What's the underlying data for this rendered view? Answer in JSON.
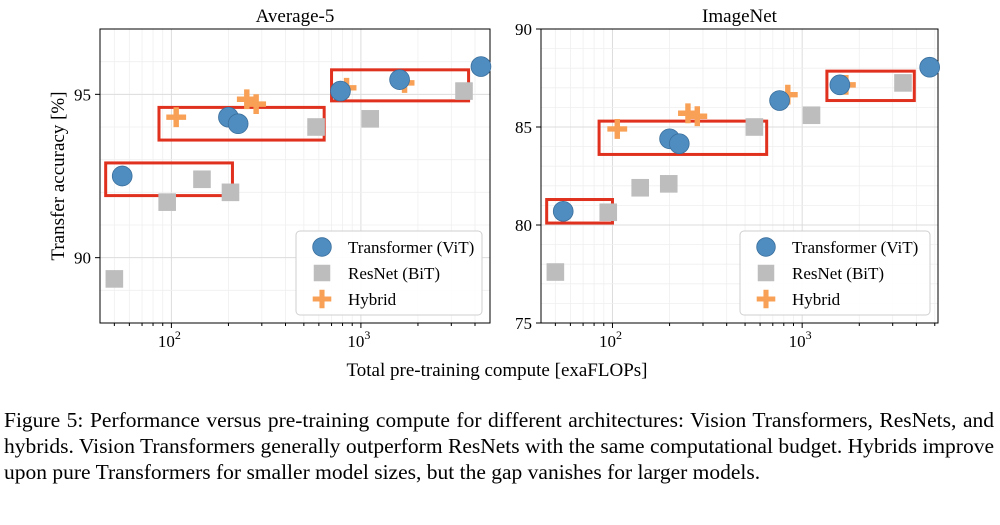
{
  "figure": {
    "xlabel": "Total pre-training compute [exaFLOPs]",
    "ylabel": "Transfer accuracy [%]"
  },
  "caption": "Figure 5: Performance versus pre-training compute for different architectures: Vision Transformers, ResNets, and hybrids. Vision Transformers generally outperform ResNets with the same computational budget. Hybrids improve upon pure Transformers for smaller model sizes, but the gap vanishes for larger models.",
  "chart_data": [
    {
      "type": "scatter",
      "title": "Average-5",
      "xscale": "log",
      "xlim": [
        42,
        4800
      ],
      "ylim": [
        88,
        97
      ],
      "yticks": [
        90,
        95
      ],
      "xticks": [
        {
          "value": 100,
          "label": "10",
          "exp": "2"
        },
        {
          "value": 1000,
          "label": "10",
          "exp": "3"
        }
      ],
      "grid": true,
      "legend": "bottom-right",
      "series": [
        {
          "name": "Transformer (ViT)",
          "marker": "circle",
          "color": "#4f8cc0",
          "points": [
            [
              55,
              92.5
            ],
            [
              200,
              94.3
            ],
            [
              225,
              94.1
            ],
            [
              780,
              95.1
            ],
            [
              1600,
              95.45
            ],
            [
              4300,
              95.85
            ]
          ]
        },
        {
          "name": "ResNet (BiT)",
          "marker": "square",
          "color": "#bdbdbd",
          "points": [
            [
              50,
              89.35
            ],
            [
              95,
              91.7
            ],
            [
              145,
              92.4
            ],
            [
              205,
              92.0
            ],
            [
              580,
              94.0
            ],
            [
              1120,
              94.25
            ],
            [
              3500,
              95.1
            ]
          ]
        },
        {
          "name": "Hybrid",
          "marker": "plus",
          "color": "#f8a156",
          "points": [
            [
              106,
              94.3
            ],
            [
              250,
              94.85
            ],
            [
              280,
              94.7
            ],
            [
              840,
              95.2
            ],
            [
              1700,
              95.35
            ]
          ]
        }
      ],
      "boxes": [
        [
          [
            45,
            92.9
          ],
          [
            210,
            91.9
          ]
        ],
        [
          [
            86,
            94.6
          ],
          [
            640,
            93.6
          ]
        ],
        [
          [
            700,
            95.75
          ],
          [
            3700,
            94.8
          ]
        ]
      ]
    },
    {
      "type": "scatter",
      "title": "ImageNet",
      "xscale": "log",
      "xlim": [
        42,
        5200
      ],
      "ylim": [
        75,
        90
      ],
      "yticks": [
        75,
        80,
        85,
        90
      ],
      "xticks": [
        {
          "value": 100,
          "label": "10",
          "exp": "2"
        },
        {
          "value": 1000,
          "label": "10",
          "exp": "3"
        }
      ],
      "grid": true,
      "legend": "bottom-right",
      "series": [
        {
          "name": "Transformer (ViT)",
          "marker": "circle",
          "color": "#4f8cc0",
          "points": [
            [
              55,
              80.7
            ],
            [
              200,
              84.4
            ],
            [
              225,
              84.15
            ],
            [
              760,
              86.35
            ],
            [
              1580,
              87.15
            ],
            [
              4700,
              88.05
            ]
          ]
        },
        {
          "name": "ResNet (BiT)",
          "marker": "square",
          "color": "#bdbdbd",
          "points": [
            [
              50,
              77.6
            ],
            [
              95,
              80.65
            ],
            [
              140,
              81.9
            ],
            [
              198,
              82.1
            ],
            [
              560,
              85.0
            ],
            [
              1120,
              85.6
            ],
            [
              3400,
              87.25
            ]
          ]
        },
        {
          "name": "Hybrid",
          "marker": "plus",
          "color": "#f8a156",
          "points": [
            [
              106,
              84.9
            ],
            [
              250,
              85.7
            ],
            [
              280,
              85.55
            ],
            [
              840,
              86.65
            ],
            [
              1700,
              87.15
            ]
          ]
        }
      ],
      "boxes": [
        [
          [
            45,
            81.3
          ],
          [
            100,
            80.1
          ]
        ],
        [
          [
            85,
            85.3
          ],
          [
            650,
            83.6
          ]
        ],
        [
          [
            1350,
            87.85
          ],
          [
            3900,
            86.35
          ]
        ]
      ]
    }
  ]
}
